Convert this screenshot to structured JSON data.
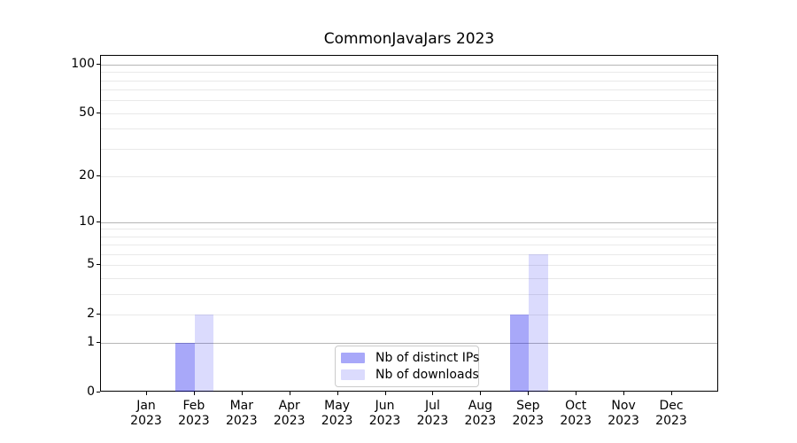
{
  "figure": {
    "background": "#ffffff",
    "axis_color": "#000000"
  },
  "chart_data": {
    "type": "bar",
    "title": "CommonJavaJars 2023",
    "xlabel": "",
    "ylabel": "",
    "categories": [
      "Jan",
      "Feb",
      "Mar",
      "Apr",
      "May",
      "Jun",
      "Jul",
      "Aug",
      "Sep",
      "Oct",
      "Nov",
      "Dec"
    ],
    "category_year": "2023",
    "series": [
      {
        "key": "distinct-ips",
        "name": "Nb of distinct IPs",
        "color_hex": "#aaaaf8",
        "color_rgba": "rgba(0,0,238,0.34)",
        "values": [
          0,
          1,
          0,
          0,
          0,
          0,
          0,
          0,
          2,
          0,
          0,
          0
        ]
      },
      {
        "key": "downloads",
        "name": "Nb of downloads",
        "color_hex": "#dcdcfb",
        "color_rgba": "rgba(0,0,238,0.14)",
        "values": [
          0,
          2,
          0,
          0,
          0,
          0,
          0,
          0,
          6,
          0,
          0,
          0
        ]
      }
    ],
    "yscale": "log1p",
    "ylim": [
      0,
      113
    ],
    "yticks": [
      0,
      1,
      2,
      5,
      10,
      20,
      50,
      100
    ],
    "ytick_labels": [
      "0",
      "1",
      "2",
      "5",
      "10",
      "20",
      "50",
      "100"
    ],
    "major_gridlines": [
      1,
      10,
      100
    ],
    "minor_gridlines": [
      2,
      3,
      4,
      5,
      6,
      7,
      8,
      9,
      20,
      30,
      40,
      50,
      60,
      70,
      80,
      90
    ],
    "grid_color_major": "#b6b6b6",
    "grid_color_minor": "#e9e9e9",
    "grid_on": true,
    "legend_position": "lower center"
  }
}
